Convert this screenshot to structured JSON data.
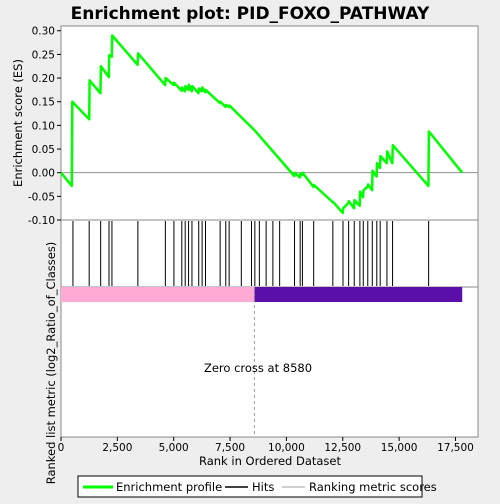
{
  "chart_data": {
    "type": "line",
    "title": "Enrichment plot: PID_FOXO_PATHWAY",
    "ylabel_top": "Enrichment score (ES)",
    "ylabel_bottom": "Ranked list metric (log2_Ratio_of_Classes)",
    "xlabel": "Rank in Ordered Dataset",
    "annotation": "Zero cross at 8580",
    "zero_cross": 8580,
    "xlim": [
      0,
      18500
    ],
    "ylim": [
      -0.1,
      0.31
    ],
    "x_ticks": [
      0,
      2500,
      5000,
      7500,
      10000,
      12500,
      15000,
      17500
    ],
    "x_tick_labels": [
      "0",
      "2,500",
      "5,000",
      "7,500",
      "10,000",
      "12,500",
      "15,000",
      "17,500"
    ],
    "y_ticks": [
      -0.1,
      -0.05,
      0.0,
      0.05,
      0.1,
      0.15,
      0.2,
      0.25,
      0.3
    ],
    "y_tick_labels": [
      "-0.10",
      "-0.05",
      "0.00",
      "0.05",
      "0.10",
      "0.15",
      "0.20",
      "0.25",
      "0.30"
    ],
    "series": [
      {
        "name": "Enrichment profile",
        "color": "#00ff00",
        "x": [
          0,
          480,
          500,
          1250,
          1270,
          1750,
          1770,
          2120,
          2140,
          2250,
          2270,
          3400,
          3420,
          4620,
          4640,
          5000,
          5020,
          5350,
          5370,
          5500,
          5520,
          5650,
          5670,
          5800,
          5820,
          6100,
          6120,
          6250,
          6270,
          6400,
          6420,
          7050,
          7070,
          7300,
          7320,
          7450,
          7470,
          8580,
          10350,
          10370,
          10600,
          10620,
          10700,
          10720,
          11200,
          11220,
          12050,
          12070,
          12500,
          12520,
          12750,
          12770,
          13000,
          13020,
          13250,
          13270,
          13400,
          13420,
          13600,
          13620,
          13800,
          13820,
          14000,
          14020,
          14150,
          14170,
          14450,
          14470,
          14700,
          14720,
          16300,
          16320,
          17800
        ],
        "y": [
          0.0,
          -0.028,
          0.15,
          0.113,
          0.195,
          0.168,
          0.225,
          0.202,
          0.248,
          0.245,
          0.29,
          0.228,
          0.252,
          0.185,
          0.2,
          0.185,
          0.19,
          0.173,
          0.18,
          0.172,
          0.183,
          0.175,
          0.186,
          0.172,
          0.183,
          0.168,
          0.178,
          0.172,
          0.18,
          0.17,
          0.175,
          0.147,
          0.15,
          0.139,
          0.143,
          0.139,
          0.142,
          0.09,
          -0.007,
          0.0,
          -0.01,
          -0.002,
          -0.005,
          0.0,
          -0.03,
          -0.026,
          -0.062,
          -0.062,
          -0.085,
          -0.075,
          -0.064,
          -0.06,
          -0.075,
          -0.058,
          -0.07,
          -0.04,
          -0.052,
          -0.037,
          -0.03,
          -0.025,
          -0.037,
          0.004,
          -0.008,
          0.02,
          0.01,
          0.035,
          0.02,
          0.045,
          0.02,
          0.058,
          -0.028,
          0.087,
          0.0
        ]
      }
    ],
    "hits": [
      530,
      1250,
      1760,
      2130,
      2260,
      3410,
      4630,
      5010,
      5360,
      5510,
      5660,
      5810,
      6110,
      6260,
      6410,
      7060,
      7310,
      7460,
      8000,
      8450,
      8600,
      8800,
      9100,
      9400,
      9700,
      10360,
      10610,
      10710,
      11210,
      12060,
      12510,
      12760,
      13010,
      13260,
      13410,
      13610,
      13810,
      14010,
      14160,
      14460,
      14710,
      16310
    ],
    "metric_bar": {
      "positive_color": "#ffaad4",
      "negative_color": "#5a0fa8",
      "positive_end": 8580,
      "end": 17800
    },
    "legend": {
      "entries": [
        "Enrichment profile",
        "Hits",
        "Ranking metric scores"
      ],
      "colors": [
        "#00ff00",
        "#000000",
        "#c0c0c0"
      ],
      "placement": "bottom"
    }
  }
}
